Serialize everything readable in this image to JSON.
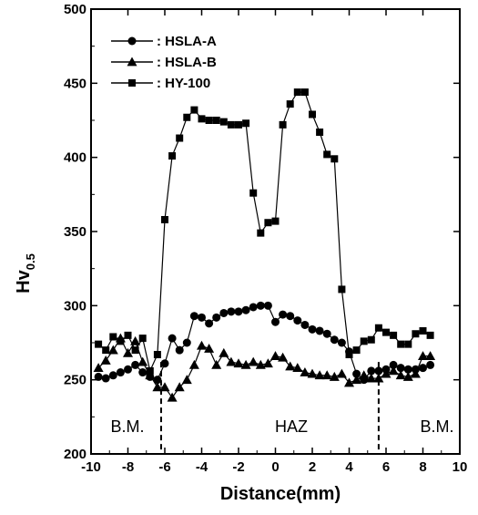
{
  "chart_data": {
    "type": "line",
    "title": "",
    "xlabel": "Distance(mm)",
    "ylabel_main": "Hv",
    "ylabel_sub": "0.5",
    "xlim": [
      -10,
      10
    ],
    "ylim": [
      200,
      500
    ],
    "x_ticks": [
      -10,
      -8,
      -6,
      -4,
      -2,
      0,
      2,
      4,
      6,
      8,
      10
    ],
    "y_ticks": [
      200,
      250,
      300,
      350,
      400,
      450,
      500
    ],
    "legend_position": "top-left",
    "annotations": {
      "bm_left": "B.M.",
      "haz": "HAZ",
      "bm_right": "B.M."
    },
    "boundary_lines_x": [
      -6.2,
      5.6
    ],
    "series": [
      {
        "name": ": HSLA-A",
        "marker": "circle",
        "x": [
          -9.6,
          -9.2,
          -8.8,
          -8.4,
          -8.0,
          -7.6,
          -7.2,
          -6.8,
          -6.4,
          -6.0,
          -5.6,
          -5.2,
          -4.8,
          -4.4,
          -4.0,
          -3.6,
          -3.2,
          -2.8,
          -2.4,
          -2.0,
          -1.6,
          -1.2,
          -0.8,
          -0.4,
          0.0,
          0.4,
          0.8,
          1.2,
          1.6,
          2.0,
          2.4,
          2.8,
          3.2,
          3.6,
          4.0,
          4.4,
          4.8,
          5.2,
          5.6,
          6.0,
          6.4,
          6.8,
          7.2,
          7.6,
          8.0,
          8.4
        ],
        "y": [
          252,
          251,
          253,
          255,
          257,
          260,
          255,
          252,
          250,
          261,
          278,
          270,
          275,
          293,
          292,
          288,
          292,
          295,
          296,
          296,
          297,
          299,
          300,
          300,
          289,
          294,
          293,
          290,
          287,
          284,
          283,
          281,
          277,
          275,
          269,
          254,
          250,
          256,
          256,
          257,
          260,
          258,
          257,
          257,
          258,
          260
        ]
      },
      {
        "name": ": HSLA-B",
        "marker": "triangle",
        "x": [
          -9.6,
          -9.2,
          -8.8,
          -8.4,
          -8.0,
          -7.6,
          -7.2,
          -6.8,
          -6.4,
          -6.0,
          -5.6,
          -5.2,
          -4.8,
          -4.4,
          -4.0,
          -3.6,
          -3.2,
          -2.8,
          -2.4,
          -2.0,
          -1.6,
          -1.2,
          -0.8,
          -0.4,
          0.0,
          0.4,
          0.8,
          1.2,
          1.6,
          2.0,
          2.4,
          2.8,
          3.2,
          3.6,
          4.0,
          4.4,
          4.8,
          5.2,
          5.6,
          6.0,
          6.4,
          6.8,
          7.2,
          7.6,
          8.0,
          8.4
        ],
        "y": [
          258,
          263,
          270,
          278,
          268,
          276,
          262,
          253,
          245,
          245,
          238,
          245,
          250,
          260,
          273,
          271,
          260,
          268,
          262,
          261,
          260,
          262,
          260,
          261,
          266,
          265,
          259,
          258,
          255,
          254,
          253,
          253,
          252,
          254,
          248,
          250,
          253,
          251,
          251,
          254,
          256,
          253,
          252,
          254,
          266,
          266
        ]
      },
      {
        "name": ": HY-100",
        "marker": "square",
        "x": [
          -9.6,
          -9.2,
          -8.8,
          -8.4,
          -8.0,
          -7.6,
          -7.2,
          -6.8,
          -6.4,
          -6.0,
          -5.6,
          -5.2,
          -4.8,
          -4.4,
          -4.0,
          -3.6,
          -3.2,
          -2.8,
          -2.4,
          -2.0,
          -1.6,
          -1.2,
          -0.8,
          -0.4,
          0.0,
          0.4,
          0.8,
          1.2,
          1.6,
          2.0,
          2.4,
          2.8,
          3.2,
          3.6,
          4.0,
          4.4,
          4.8,
          5.2,
          5.6,
          6.0,
          6.4,
          6.8,
          7.2,
          7.6,
          8.0,
          8.4
        ],
        "y": [
          274,
          270,
          279,
          276,
          280,
          270,
          278,
          256,
          267,
          358,
          401,
          413,
          427,
          432,
          426,
          425,
          425,
          424,
          422,
          422,
          423,
          376,
          349,
          356,
          357,
          422,
          436,
          444,
          444,
          429,
          417,
          402,
          399,
          311,
          267,
          270,
          276,
          277,
          285,
          282,
          280,
          274,
          274,
          281,
          283,
          280
        ]
      }
    ]
  }
}
